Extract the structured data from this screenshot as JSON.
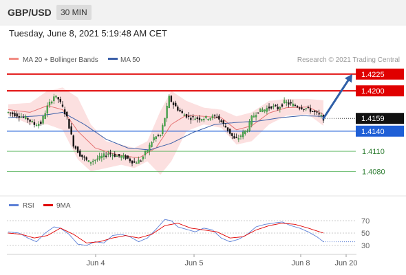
{
  "header": {
    "symbol": "GBP/USD",
    "timeframe": "30 MIN"
  },
  "datetime": "Tuesday, June 8, 2021 5:19:48 AM CET",
  "legend": {
    "ma20_label": "MA 20 + Bollinger Bands",
    "ma50_label": "MA 50",
    "ma20_color": "#f28b82",
    "ma50_color": "#3b5fa8",
    "copyright": "Research © 2021 Trading Central"
  },
  "rsi_legend": {
    "rsi_label": "RSI",
    "ma_label": "9MA",
    "rsi_color": "#5b7fd6",
    "ma_color": "#e00000"
  },
  "chart_data": [
    {
      "type": "candlestick",
      "title": "GBP/USD",
      "x_ticks": [
        "Jun 4",
        "Jun 5",
        "Jun 8",
        "Jun 20"
      ],
      "ylim": [
        1.4065,
        1.4235
      ],
      "current_price": "1.4159",
      "levels": [
        {
          "label": "1.4225",
          "value": 1.4225,
          "color": "#e00000",
          "style": "resistance"
        },
        {
          "label": "1.4200",
          "value": 1.42,
          "color": "#e00000",
          "style": "resistance"
        },
        {
          "label": "1.4140",
          "value": 1.414,
          "color": "#1f5fd6",
          "style": "pivot"
        },
        {
          "label": "1.4110",
          "value": 1.411,
          "color": "#4caf50",
          "style": "support"
        },
        {
          "label": "1.4080",
          "value": 1.408,
          "color": "#4caf50",
          "style": "support"
        }
      ],
      "anchors": [
        [
          0,
          1.4168
        ],
        [
          5,
          1.4163
        ],
        [
          9,
          1.4158
        ],
        [
          12,
          1.415
        ],
        [
          15,
          1.4152
        ],
        [
          18,
          1.4176
        ],
        [
          21,
          1.4192
        ],
        [
          23,
          1.4188
        ],
        [
          25,
          1.4175
        ],
        [
          27,
          1.416
        ],
        [
          30,
          1.412
        ],
        [
          33,
          1.4105
        ],
        [
          37,
          1.4094
        ],
        [
          42,
          1.41
        ],
        [
          46,
          1.4107
        ],
        [
          50,
          1.4103
        ],
        [
          54,
          1.4101
        ],
        [
          58,
          1.4093
        ],
        [
          61,
          1.4097
        ],
        [
          64,
          1.4112
        ],
        [
          67,
          1.413
        ],
        [
          70,
          1.4134
        ],
        [
          72,
          1.416
        ],
        [
          74,
          1.419
        ],
        [
          76,
          1.418
        ],
        [
          78,
          1.4173
        ],
        [
          80,
          1.4166
        ],
        [
          84,
          1.416
        ],
        [
          88,
          1.4159
        ],
        [
          92,
          1.416
        ],
        [
          96,
          1.4162
        ],
        [
          99,
          1.415
        ],
        [
          101,
          1.4142
        ],
        [
          104,
          1.4128
        ],
        [
          106,
          1.413
        ],
        [
          108,
          1.4137
        ],
        [
          110,
          1.4143
        ],
        [
          112,
          1.416
        ],
        [
          115,
          1.417
        ],
        [
          118,
          1.4172
        ],
        [
          121,
          1.4177
        ],
        [
          124,
          1.4174
        ],
        [
          127,
          1.4183
        ],
        [
          130,
          1.418
        ],
        [
          134,
          1.4176
        ],
        [
          138,
          1.4173
        ],
        [
          142,
          1.4166
        ],
        [
          145,
          1.4159
        ]
      ],
      "ma20": [
        [
          0,
          1.4172
        ],
        [
          10,
          1.4168
        ],
        [
          18,
          1.4178
        ],
        [
          25,
          1.4172
        ],
        [
          32,
          1.414
        ],
        [
          40,
          1.4115
        ],
        [
          50,
          1.4105
        ],
        [
          60,
          1.41
        ],
        [
          68,
          1.4115
        ],
        [
          75,
          1.415
        ],
        [
          82,
          1.4164
        ],
        [
          90,
          1.4162
        ],
        [
          98,
          1.416
        ],
        [
          105,
          1.4142
        ],
        [
          112,
          1.4148
        ],
        [
          120,
          1.4167
        ],
        [
          128,
          1.4175
        ],
        [
          138,
          1.4176
        ],
        [
          145,
          1.4165
        ]
      ],
      "ma50": [
        [
          0,
          1.416
        ],
        [
          15,
          1.4163
        ],
        [
          25,
          1.4168
        ],
        [
          35,
          1.415
        ],
        [
          45,
          1.4128
        ],
        [
          55,
          1.4115
        ],
        [
          65,
          1.4112
        ],
        [
          75,
          1.4122
        ],
        [
          85,
          1.4138
        ],
        [
          95,
          1.415
        ],
        [
          105,
          1.4153
        ],
        [
          115,
          1.4155
        ],
        [
          125,
          1.416
        ],
        [
          135,
          1.4163
        ],
        [
          145,
          1.4162
        ]
      ],
      "bollinger_upper": [
        [
          0,
          1.418
        ],
        [
          10,
          1.4182
        ],
        [
          18,
          1.42
        ],
        [
          25,
          1.4205
        ],
        [
          32,
          1.419
        ],
        [
          38,
          1.415
        ],
        [
          45,
          1.4125
        ],
        [
          52,
          1.412
        ],
        [
          58,
          1.4115
        ],
        [
          64,
          1.4125
        ],
        [
          70,
          1.417
        ],
        [
          75,
          1.42
        ],
        [
          82,
          1.4185
        ],
        [
          90,
          1.4175
        ],
        [
          98,
          1.4172
        ],
        [
          105,
          1.4162
        ],
        [
          112,
          1.4168
        ],
        [
          120,
          1.4185
        ],
        [
          128,
          1.4188
        ],
        [
          138,
          1.4188
        ],
        [
          145,
          1.4186
        ]
      ],
      "bollinger_lower": [
        [
          0,
          1.4164
        ],
        [
          10,
          1.415
        ],
        [
          18,
          1.415
        ],
        [
          25,
          1.4142
        ],
        [
          32,
          1.4098
        ],
        [
          38,
          1.408
        ],
        [
          45,
          1.4085
        ],
        [
          52,
          1.409
        ],
        [
          58,
          1.4085
        ],
        [
          64,
          1.4095
        ],
        [
          70,
          1.4075
        ],
        [
          75,
          1.4095
        ],
        [
          82,
          1.414
        ],
        [
          90,
          1.415
        ],
        [
          98,
          1.4145
        ],
        [
          105,
          1.412
        ],
        [
          112,
          1.4125
        ],
        [
          120,
          1.415
        ],
        [
          128,
          1.4163
        ],
        [
          138,
          1.4165
        ],
        [
          145,
          1.4148
        ]
      ],
      "projection": {
        "from": 1.4159,
        "to": 1.4225
      }
    },
    {
      "type": "line",
      "title": "RSI",
      "y_ticks": [
        "70",
        "50",
        "30"
      ],
      "ylim": [
        20,
        80
      ],
      "rsi": [
        [
          0,
          52
        ],
        [
          5,
          50
        ],
        [
          9,
          42
        ],
        [
          13,
          36
        ],
        [
          17,
          50
        ],
        [
          21,
          60
        ],
        [
          24,
          58
        ],
        [
          28,
          48
        ],
        [
          32,
          32
        ],
        [
          36,
          30
        ],
        [
          40,
          36
        ],
        [
          44,
          34
        ],
        [
          48,
          46
        ],
        [
          52,
          48
        ],
        [
          56,
          44
        ],
        [
          60,
          36
        ],
        [
          64,
          42
        ],
        [
          68,
          56
        ],
        [
          72,
          72
        ],
        [
          75,
          70
        ],
        [
          78,
          60
        ],
        [
          82,
          56
        ],
        [
          86,
          52
        ],
        [
          90,
          58
        ],
        [
          94,
          55
        ],
        [
          98,
          42
        ],
        [
          102,
          36
        ],
        [
          106,
          40
        ],
        [
          110,
          48
        ],
        [
          114,
          60
        ],
        [
          118,
          64
        ],
        [
          122,
          66
        ],
        [
          126,
          68
        ],
        [
          130,
          62
        ],
        [
          134,
          58
        ],
        [
          138,
          52
        ],
        [
          142,
          44
        ],
        [
          145,
          36
        ]
      ],
      "rsi_ma": [
        [
          0,
          50
        ],
        [
          6,
          48
        ],
        [
          12,
          42
        ],
        [
          18,
          46
        ],
        [
          24,
          58
        ],
        [
          30,
          48
        ],
        [
          36,
          34
        ],
        [
          42,
          36
        ],
        [
          48,
          42
        ],
        [
          54,
          46
        ],
        [
          60,
          42
        ],
        [
          66,
          48
        ],
        [
          72,
          62
        ],
        [
          78,
          66
        ],
        [
          84,
          58
        ],
        [
          90,
          55
        ],
        [
          96,
          52
        ],
        [
          102,
          42
        ],
        [
          108,
          44
        ],
        [
          114,
          55
        ],
        [
          120,
          62
        ],
        [
          126,
          66
        ],
        [
          132,
          64
        ],
        [
          138,
          58
        ],
        [
          145,
          50
        ]
      ]
    }
  ]
}
